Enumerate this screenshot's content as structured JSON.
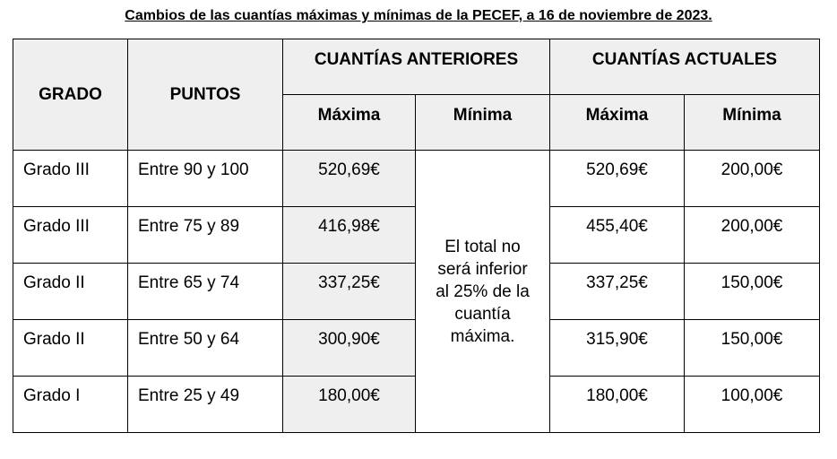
{
  "title": "Cambios de las cuantías máximas y mínimas de la PECEF, a 16 de noviembre de 2023.",
  "headers": {
    "grado": "GRADO",
    "puntos": "PUNTOS",
    "anteriores": "CUANTÍAS ANTERIORES",
    "actuales": "CUANTÍAS ACTUALES",
    "maxima": "Máxima",
    "minima": "Mínima"
  },
  "merged_note": [
    "El total no",
    "será inferior",
    "al 25% de la",
    "cuantía",
    "máxima."
  ],
  "rows": [
    {
      "grado": "Grado III",
      "puntos": "Entre 90 y 100",
      "ant_max": "520,69€",
      "act_max": "520,69€",
      "act_min": "200,00€"
    },
    {
      "grado": "Grado III",
      "puntos": "Entre 75 y 89",
      "ant_max": "416,98€",
      "act_max": "455,40€",
      "act_min": "200,00€"
    },
    {
      "grado": "Grado II",
      "puntos": "Entre 65 y 74",
      "ant_max": "337,25€",
      "act_max": "337,25€",
      "act_min": "150,00€"
    },
    {
      "grado": "Grado II",
      "puntos": "Entre 50 y 64",
      "ant_max": "300,90€",
      "act_max": "315,90€",
      "act_min": "150,00€"
    },
    {
      "grado": "Grado I",
      "puntos": "Entre 25 y 49",
      "ant_max": "180,00€",
      "act_max": "180,00€",
      "act_min": "100,00€"
    }
  ]
}
